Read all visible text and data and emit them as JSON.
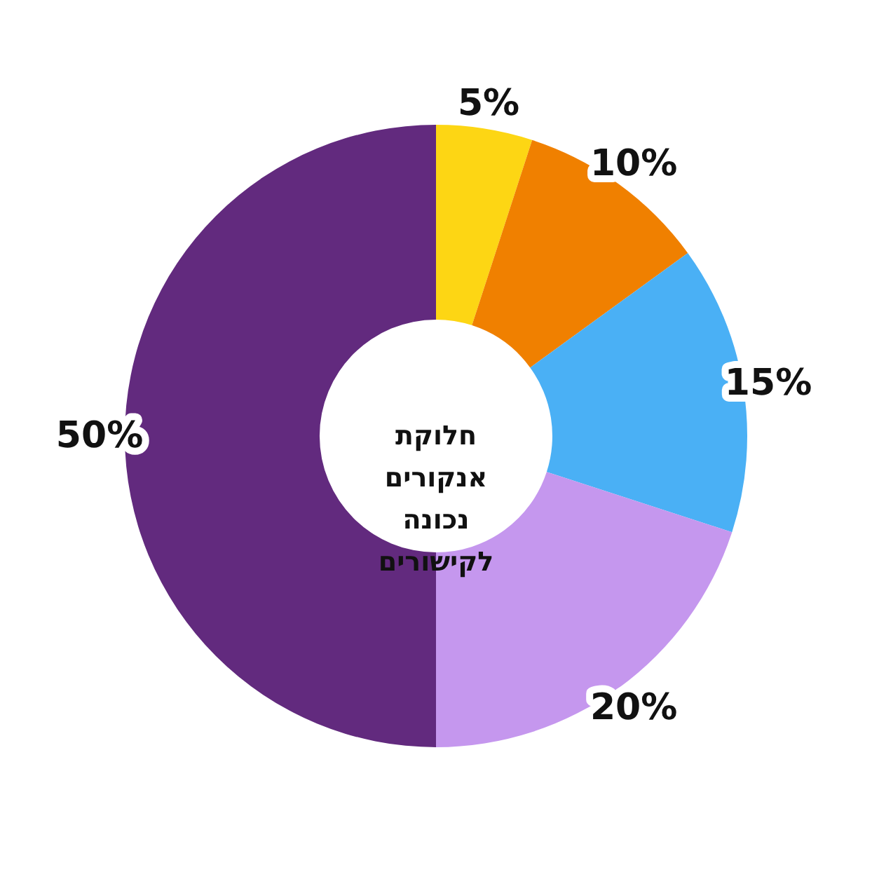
{
  "chart_data": {
    "type": "donut",
    "title": "חלוקת אנקורים נכונה לקישורים",
    "categories": [
      null,
      null,
      null,
      null,
      null
    ],
    "values": [
      5,
      10,
      15,
      20,
      50
    ],
    "value_labels": [
      "5%",
      "10%",
      "15%",
      "20%",
      "50%"
    ],
    "colors": [
      "#fdd614",
      "#f08000",
      "#4ab0f5",
      "#c597ee",
      "#622a7e"
    ]
  }
}
